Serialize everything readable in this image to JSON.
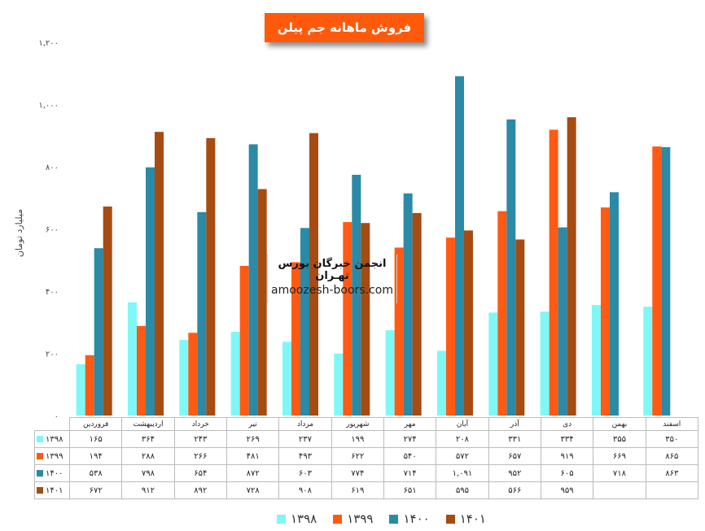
{
  "title": "فروش ماهانه جم پیلن",
  "watermark": {
    "line1": "انجمن خبرگان بورس تهـران",
    "line2": "amoozesh-boors.com"
  },
  "chart_data": {
    "type": "bar",
    "ylabel": "میلیارد تومان",
    "ylim": [
      0,
      1200
    ],
    "yticks": [
      0,
      200,
      400,
      600,
      800,
      1000,
      1200
    ],
    "ytick_labels": [
      "۰",
      "۲۰۰",
      "۴۰۰",
      "۶۰۰",
      "۸۰۰",
      "۱,۰۰۰",
      "۱,۲۰۰"
    ],
    "grid": false,
    "legend": "bottom",
    "categories": [
      "فروردین",
      "اردیبهشت",
      "خرداد",
      "تیر",
      "مرداد",
      "شهریور",
      "مهر",
      "آبان",
      "آذر",
      "دی",
      "بهمن",
      "اسفند"
    ],
    "series": [
      {
        "name": "۱۳۹۸",
        "color": "#7ff7f7",
        "values": [
          165,
          364,
          243,
          269,
          237,
          199,
          274,
          208,
          331,
          334,
          355,
          350
        ],
        "labels": [
          "۱۶۵",
          "۳۶۴",
          "۲۴۳",
          "۲۶۹",
          "۲۳۷",
          "۱۹۹",
          "۲۷۴",
          "۲۰۸",
          "۳۳۱",
          "۳۳۴",
          "۳۵۵",
          "۳۵۰"
        ]
      },
      {
        "name": "۱۳۹۹",
        "color": "#ff5a14",
        "values": [
          194,
          288,
          266,
          481,
          493,
          622,
          540,
          572,
          657,
          919,
          669,
          865
        ],
        "labels": [
          "۱۹۴",
          "۲۸۸",
          "۲۶۶",
          "۴۸۱",
          "۴۹۳",
          "۶۲۲",
          "۵۴۰",
          "۵۷۲",
          "۶۵۷",
          "۹۱۹",
          "۶۶۹",
          "۸۶۵"
        ]
      },
      {
        "name": "۱۴۰۰",
        "color": "#2b8aa6",
        "values": [
          538,
          798,
          654,
          872,
          603,
          774,
          714,
          1091,
          952,
          605,
          718,
          863
        ],
        "labels": [
          "۵۳۸",
          "۷۹۸",
          "۶۵۴",
          "۸۷۲",
          "۶۰۳",
          "۷۷۴",
          "۷۱۴",
          "۱,۰۹۱",
          "۹۵۲",
          "۶۰۵",
          "۷۱۸",
          "۸۶۳"
        ]
      },
      {
        "name": "۱۴۰۱",
        "color": "#a64b12",
        "values": [
          672,
          912,
          892,
          728,
          908,
          619,
          651,
          595,
          566,
          959,
          null,
          null
        ],
        "labels": [
          "۶۷۲",
          "۹۱۲",
          "۸۹۲",
          "۷۲۸",
          "۹۰۸",
          "۶۱۹",
          "۶۵۱",
          "۵۹۵",
          "۵۶۶",
          "۹۵۹",
          "",
          ""
        ]
      }
    ]
  }
}
